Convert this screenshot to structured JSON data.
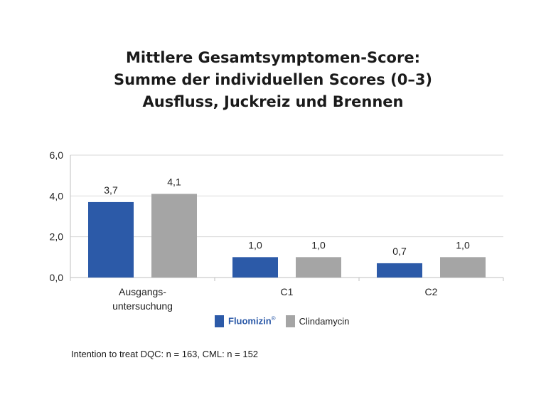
{
  "chart_data": {
    "type": "bar",
    "title_lines": [
      "Mittlere Gesamtsymptomen-Score:",
      "Summe der individuellen Scores (0–3)",
      "Ausfluss, Juckreiz und Brennen"
    ],
    "categories": [
      "Ausgangs-\nuntersuchung",
      "C1",
      "C2"
    ],
    "series": [
      {
        "name": "Fluomizin",
        "color": "#2c5aa8",
        "values": [
          3.7,
          1.0,
          0.7
        ],
        "labels": [
          "3,7",
          "1,0",
          "0,7"
        ]
      },
      {
        "name": "Clindamycin",
        "color": "#a5a5a5",
        "values": [
          4.1,
          1.0,
          1.0
        ],
        "labels": [
          "4,1",
          "1,0",
          "1,0"
        ]
      }
    ],
    "yticks": [
      0,
      2,
      4,
      6
    ],
    "ytick_labels": [
      "0,0",
      "2,0",
      "4,0",
      "6,0"
    ],
    "ylim": [
      0,
      6
    ],
    "grid": true,
    "legend_position": "bottom-center",
    "xlabel": "",
    "ylabel": ""
  },
  "legend": {
    "fluomizin": "Fluomizin",
    "fluomizin_mark": "®",
    "clindamycin": "Clindamycin"
  },
  "footnote": "Intention to treat DQC: n = 163, CML: n = 152"
}
